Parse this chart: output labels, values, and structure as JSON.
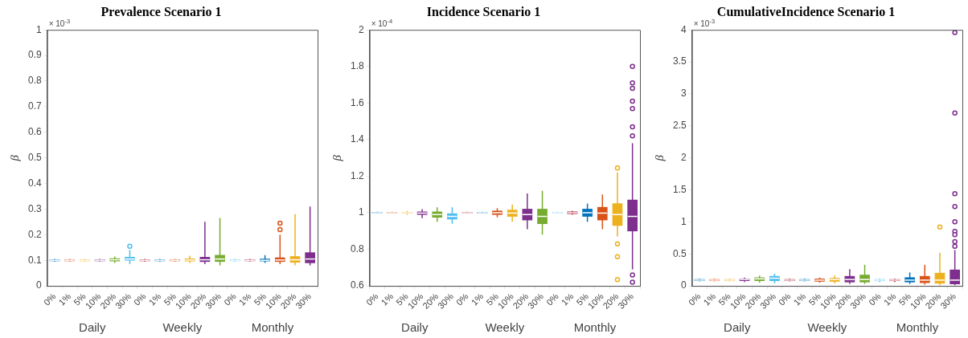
{
  "chart_data": [
    {
      "type": "box",
      "title": "Prevalence Scenario 1",
      "ylabel": "β",
      "categories": [
        "0%",
        "1%",
        "5%",
        "10%",
        "20%",
        "30%",
        "0%",
        "1%",
        "5%",
        "10%",
        "20%",
        "30%",
        "0%",
        "1%",
        "5%",
        "10%",
        "20%",
        "30%"
      ],
      "colors": [
        "#0072bd",
        "#d95319",
        "#edb120",
        "#7e2f8e",
        "#77ac30",
        "#4dbeee",
        "#a2142f",
        "#0072bd",
        "#d95319",
        "#edb120",
        "#7e2f8e",
        "#77ac30",
        "#4dbeee",
        "#a2142f",
        "#0072bd",
        "#d95319",
        "#edb120",
        "#7e2f8e"
      ],
      "boxes": [
        {
          "low": 0.095,
          "q1": 0.098,
          "median": 0.1,
          "q3": 0.102,
          "high": 0.105
        },
        {
          "low": 0.095,
          "q1": 0.098,
          "median": 0.1,
          "q3": 0.102,
          "high": 0.105
        },
        {
          "low": 0.095,
          "q1": 0.098,
          "median": 0.1,
          "q3": 0.102,
          "high": 0.105
        },
        {
          "low": 0.095,
          "q1": 0.098,
          "median": 0.1,
          "q3": 0.102,
          "high": 0.105
        },
        {
          "low": 0.09,
          "q1": 0.097,
          "median": 0.102,
          "q3": 0.107,
          "high": 0.115
        },
        {
          "low": 0.085,
          "q1": 0.1,
          "median": 0.105,
          "q3": 0.112,
          "high": 0.14,
          "outliers": [
            0.155
          ]
        },
        {
          "low": 0.095,
          "q1": 0.098,
          "median": 0.1,
          "q3": 0.102,
          "high": 0.105
        },
        {
          "low": 0.095,
          "q1": 0.098,
          "median": 0.1,
          "q3": 0.102,
          "high": 0.105
        },
        {
          "low": 0.095,
          "q1": 0.098,
          "median": 0.1,
          "q3": 0.102,
          "high": 0.105
        },
        {
          "low": 0.09,
          "q1": 0.097,
          "median": 0.101,
          "q3": 0.106,
          "high": 0.118
        },
        {
          "low": 0.085,
          "q1": 0.095,
          "median": 0.102,
          "q3": 0.112,
          "high": 0.25
        },
        {
          "low": 0.08,
          "q1": 0.095,
          "median": 0.105,
          "q3": 0.12,
          "high": 0.265
        },
        {
          "low": 0.095,
          "q1": 0.098,
          "median": 0.1,
          "q3": 0.102,
          "high": 0.105
        },
        {
          "low": 0.095,
          "q1": 0.098,
          "median": 0.1,
          "q3": 0.102,
          "high": 0.105
        },
        {
          "low": 0.09,
          "q1": 0.097,
          "median": 0.1,
          "q3": 0.105,
          "high": 0.12
        },
        {
          "low": 0.085,
          "q1": 0.095,
          "median": 0.101,
          "q3": 0.11,
          "high": 0.2,
          "outliers": [
            0.22,
            0.245
          ]
        },
        {
          "low": 0.08,
          "q1": 0.092,
          "median": 0.102,
          "q3": 0.115,
          "high": 0.28
        },
        {
          "low": 0.08,
          "q1": 0.09,
          "median": 0.105,
          "q3": 0.13,
          "high": 0.31
        }
      ],
      "ylim": [
        0,
        1
      ],
      "yticks": [
        0,
        0.1,
        0.2,
        0.3,
        0.4,
        0.5,
        0.6,
        0.7,
        0.8,
        0.9,
        1
      ],
      "annotations": [
        "× 10$^{-3}$",
        "Daily",
        "Weekly",
        "Monthly"
      ]
    },
    {
      "type": "box",
      "title": "Incidence Scenario 1",
      "ylabel": "β",
      "categories": [
        "0%",
        "1%",
        "5%",
        "10%",
        "20%",
        "30%",
        "0%",
        "1%",
        "5%",
        "10%",
        "20%",
        "30%",
        "0%",
        "1%",
        "5%",
        "10%",
        "20%",
        "30%"
      ],
      "colors": [
        "#0072bd",
        "#d95319",
        "#edb120",
        "#7e2f8e",
        "#77ac30",
        "#4dbeee",
        "#a2142f",
        "#0072bd",
        "#d95319",
        "#edb120",
        "#7e2f8e",
        "#77ac30",
        "#4dbeee",
        "#a2142f",
        "#0072bd",
        "#d95319",
        "#edb120",
        "#7e2f8e"
      ],
      "boxes": [
        {
          "low": 0.995,
          "q1": 0.998,
          "median": 1,
          "q3": 1.002,
          "high": 1.005
        },
        {
          "low": 0.995,
          "q1": 0.998,
          "median": 1,
          "q3": 1.002,
          "high": 1.005
        },
        {
          "low": 0.99,
          "q1": 0.997,
          "median": 1,
          "q3": 1.003,
          "high": 1.01
        },
        {
          "low": 0.97,
          "q1": 0.99,
          "median": 0.998,
          "q3": 1.005,
          "high": 1.02
        },
        {
          "low": 0.95,
          "q1": 0.975,
          "median": 0.99,
          "q3": 1.005,
          "high": 1.03
        },
        {
          "low": 0.94,
          "q1": 0.965,
          "median": 0.98,
          "q3": 0.995,
          "high": 1.03
        },
        {
          "low": 0.995,
          "q1": 0.998,
          "median": 1,
          "q3": 1.002,
          "high": 1.005
        },
        {
          "low": 0.995,
          "q1": 0.998,
          "median": 1,
          "q3": 1.002,
          "high": 1.005
        },
        {
          "low": 0.975,
          "q1": 0.99,
          "median": 1,
          "q3": 1.01,
          "high": 1.025
        },
        {
          "low": 0.95,
          "q1": 0.98,
          "median": 0.998,
          "q3": 1.015,
          "high": 1.045
        },
        {
          "low": 0.91,
          "q1": 0.96,
          "median": 0.99,
          "q3": 1.02,
          "high": 1.105
        },
        {
          "low": 0.88,
          "q1": 0.94,
          "median": 0.98,
          "q3": 1.02,
          "high": 1.12
        },
        {
          "low": 0.995,
          "q1": 0.998,
          "median": 1,
          "q3": 1.002,
          "high": 1.005
        },
        {
          "low": 0.99,
          "q1": 0.995,
          "median": 1,
          "q3": 1.005,
          "high": 1.01
        },
        {
          "low": 0.95,
          "q1": 0.98,
          "median": 1,
          "q3": 1.02,
          "high": 1.05
        },
        {
          "low": 0.91,
          "q1": 0.96,
          "median": 0.998,
          "q3": 1.03,
          "high": 1.1
        },
        {
          "low": 0.87,
          "q1": 0.93,
          "median": 0.99,
          "q3": 1.05,
          "high": 1.22,
          "outliers": [
            1.245,
            0.83,
            0.76,
            0.635
          ]
        },
        {
          "low": 0.69,
          "q1": 0.9,
          "median": 0.98,
          "q3": 1.07,
          "high": 1.38,
          "outliers": [
            1.42,
            1.47,
            1.57,
            1.61,
            1.68,
            1.71,
            1.8,
            0.66,
            0.62
          ]
        }
      ],
      "ylim": [
        0.6,
        2
      ],
      "yticks": [
        0.6,
        0.8,
        1,
        1.2,
        1.4,
        1.6,
        1.8,
        2
      ],
      "annotations": [
        "× 10$^{-4}$",
        "Daily",
        "Weekly",
        "Monthly"
      ]
    },
    {
      "type": "box",
      "title": "CumulativeIncidence Scenario 1",
      "ylabel": "β",
      "categories": [
        "0%",
        "1%",
        "5%",
        "10%",
        "20%",
        "30%",
        "0%",
        "1%",
        "5%",
        "10%",
        "20%",
        "30%",
        "0%",
        "1%",
        "5%",
        "10%",
        "20%",
        "30%"
      ],
      "colors": [
        "#0072bd",
        "#d95319",
        "#edb120",
        "#7e2f8e",
        "#77ac30",
        "#4dbeee",
        "#a2142f",
        "#0072bd",
        "#d95319",
        "#edb120",
        "#7e2f8e",
        "#77ac30",
        "#4dbeee",
        "#a2142f",
        "#0072bd",
        "#d95319",
        "#edb120",
        "#7e2f8e"
      ],
      "boxes": [
        {
          "low": 0.07,
          "q1": 0.08,
          "median": 0.09,
          "q3": 0.1,
          "high": 0.11
        },
        {
          "low": 0.07,
          "q1": 0.08,
          "median": 0.09,
          "q3": 0.1,
          "high": 0.11
        },
        {
          "low": 0.07,
          "q1": 0.08,
          "median": 0.09,
          "q3": 0.1,
          "high": 0.11
        },
        {
          "low": 0.06,
          "q1": 0.08,
          "median": 0.1,
          "q3": 0.11,
          "high": 0.13
        },
        {
          "low": 0.05,
          "q1": 0.08,
          "median": 0.11,
          "q3": 0.13,
          "high": 0.16
        },
        {
          "low": 0.04,
          "q1": 0.08,
          "median": 0.12,
          "q3": 0.15,
          "high": 0.19
        },
        {
          "low": 0.07,
          "q1": 0.08,
          "median": 0.09,
          "q3": 0.1,
          "high": 0.11
        },
        {
          "low": 0.07,
          "q1": 0.08,
          "median": 0.09,
          "q3": 0.1,
          "high": 0.11
        },
        {
          "low": 0.05,
          "q1": 0.07,
          "median": 0.09,
          "q3": 0.11,
          "high": 0.13
        },
        {
          "low": 0.04,
          "q1": 0.07,
          "median": 0.1,
          "q3": 0.12,
          "high": 0.16
        },
        {
          "low": 0.03,
          "q1": 0.06,
          "median": 0.1,
          "q3": 0.15,
          "high": 0.26
        },
        {
          "low": 0.03,
          "q1": 0.06,
          "median": 0.1,
          "q3": 0.17,
          "high": 0.33
        },
        {
          "low": 0.06,
          "q1": 0.08,
          "median": 0.09,
          "q3": 0.1,
          "high": 0.11
        },
        {
          "low": 0.06,
          "q1": 0.08,
          "median": 0.09,
          "q3": 0.1,
          "high": 0.11
        },
        {
          "low": 0.03,
          "q1": 0.06,
          "median": 0.09,
          "q3": 0.13,
          "high": 0.21
        },
        {
          "low": 0.02,
          "q1": 0.05,
          "median": 0.09,
          "q3": 0.15,
          "high": 0.33
        },
        {
          "low": 0.01,
          "q1": 0.04,
          "median": 0.09,
          "q3": 0.2,
          "high": 0.52,
          "outliers": [
            0.92
          ]
        },
        {
          "low": 0.01,
          "q1": 0.03,
          "median": 0.09,
          "q3": 0.25,
          "high": 0.56,
          "outliers": [
            0.62,
            0.69,
            0.8,
            0.85,
            1.0,
            1.24,
            1.44,
            2.7,
            3.96
          ]
        }
      ],
      "ylim": [
        0,
        4
      ],
      "yticks": [
        0,
        0.5,
        1,
        1.5,
        2,
        2.5,
        3,
        3.5,
        4
      ],
      "annotations": [
        "× 10$^{-3}$",
        "Daily",
        "Weekly",
        "Monthly"
      ]
    }
  ]
}
